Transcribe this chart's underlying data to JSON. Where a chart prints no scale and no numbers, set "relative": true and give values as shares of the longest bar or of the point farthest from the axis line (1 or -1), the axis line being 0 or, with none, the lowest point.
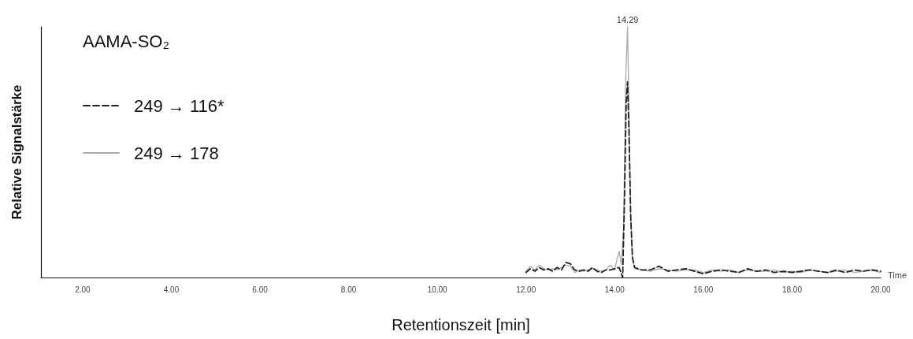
{
  "chart_data": {
    "type": "line",
    "title": "AAMA-SO₂",
    "xlabel": "Retentionszeit [min]",
    "ylabel": "Relative Signalstärke",
    "relative": true,
    "legend": "top left",
    "grid": false,
    "xlim": [
      1.06,
      20
    ],
    "xticks": [
      {
        "value": 2,
        "label": "2.00"
      },
      {
        "value": 4,
        "label": "4.00"
      },
      {
        "value": 6,
        "label": "6.00"
      },
      {
        "value": 8,
        "label": "8.00"
      },
      {
        "value": 10,
        "label": "10.00"
      },
      {
        "value": 12,
        "label": "12.00"
      },
      {
        "value": 14,
        "label": "14.00"
      },
      {
        "value": 16,
        "label": "16.00"
      },
      {
        "value": 18,
        "label": "18.00"
      },
      {
        "value": 20,
        "label": "20.00"
      }
    ],
    "annotations": [
      {
        "text": "14.29",
        "x": 14.29,
        "y": 1
      },
      "Time"
    ],
    "series": [
      {
        "name": "249 → 116*",
        "color": "#222222",
        "line_style": "dashed",
        "x": [
          12.0,
          12.1,
          12.2,
          12.3,
          12.4,
          12.5,
          12.6,
          12.7,
          12.8,
          12.9,
          13.0,
          13.1,
          13.2,
          13.3,
          13.4,
          13.5,
          13.6,
          13.7,
          13.8,
          13.9,
          14.0,
          14.1,
          14.18,
          14.22,
          14.26,
          14.29,
          14.32,
          14.36,
          14.4,
          14.45,
          14.6,
          14.8,
          15.0,
          15.2,
          15.4,
          15.6,
          15.8,
          16.0,
          16.2,
          16.4,
          16.6,
          16.8,
          17.0,
          17.2,
          17.4,
          17.6,
          17.8,
          18.0,
          18.2,
          18.4,
          18.6,
          18.8,
          19.0,
          19.2,
          19.4,
          19.6,
          19.8,
          20.0
        ],
        "values": [
          0.02,
          0.035,
          0.025,
          0.04,
          0.03,
          0.035,
          0.025,
          0.04,
          0.03,
          0.06,
          0.055,
          0.03,
          0.025,
          0.03,
          0.025,
          0.04,
          0.025,
          0.02,
          0.03,
          0.03,
          0.035,
          0.04,
          0.0,
          0.3,
          0.7,
          0.78,
          0.6,
          0.25,
          0.08,
          0.04,
          0.03,
          0.03,
          0.045,
          0.025,
          0.03,
          0.035,
          0.025,
          0.015,
          0.025,
          0.03,
          0.025,
          0.02,
          0.035,
          0.025,
          0.03,
          0.02,
          0.025,
          0.02,
          0.025,
          0.03,
          0.025,
          0.02,
          0.03,
          0.02,
          0.03,
          0.025,
          0.03,
          0.025
        ]
      },
      {
        "name": "249 → 178",
        "color": "#aaaaaa",
        "line_style": "solid",
        "x": [
          12.0,
          12.1,
          12.2,
          12.3,
          12.4,
          12.5,
          12.6,
          12.7,
          12.8,
          12.9,
          13.0,
          13.1,
          13.2,
          13.3,
          13.4,
          13.5,
          13.6,
          13.7,
          13.8,
          13.9,
          14.0,
          14.05,
          14.1,
          14.15,
          14.2,
          14.25,
          14.29,
          14.32,
          14.36,
          14.4,
          14.45,
          14.6,
          14.8,
          15.0,
          15.2,
          15.4,
          15.6,
          15.8,
          16.0,
          16.2,
          16.4,
          16.6,
          16.8,
          17.0,
          17.2,
          17.4,
          17.6,
          17.8,
          18.0,
          18.2,
          18.4,
          18.6,
          18.8,
          19.0,
          19.2,
          19.4,
          19.6,
          19.8,
          20.0
        ],
        "values": [
          0.025,
          0.045,
          0.03,
          0.05,
          0.035,
          0.03,
          0.035,
          0.03,
          0.04,
          0.05,
          0.045,
          0.02,
          0.03,
          0.025,
          0.03,
          0.035,
          0.03,
          0.025,
          0.03,
          0.05,
          0.03,
          0.07,
          0.105,
          0.05,
          0.2,
          0.8,
          1,
          0.7,
          0.25,
          0.08,
          0.035,
          0.03,
          0.025,
          0.035,
          0.03,
          0.025,
          0.03,
          0.03,
          0.02,
          0.03,
          0.025,
          0.03,
          0.02,
          0.03,
          0.025,
          0.025,
          0.03,
          0.02,
          0.025,
          0.02,
          0.03,
          0.025,
          0.02,
          0.025,
          0.03,
          0.02,
          0.025,
          0.03,
          0.02
        ]
      }
    ]
  }
}
